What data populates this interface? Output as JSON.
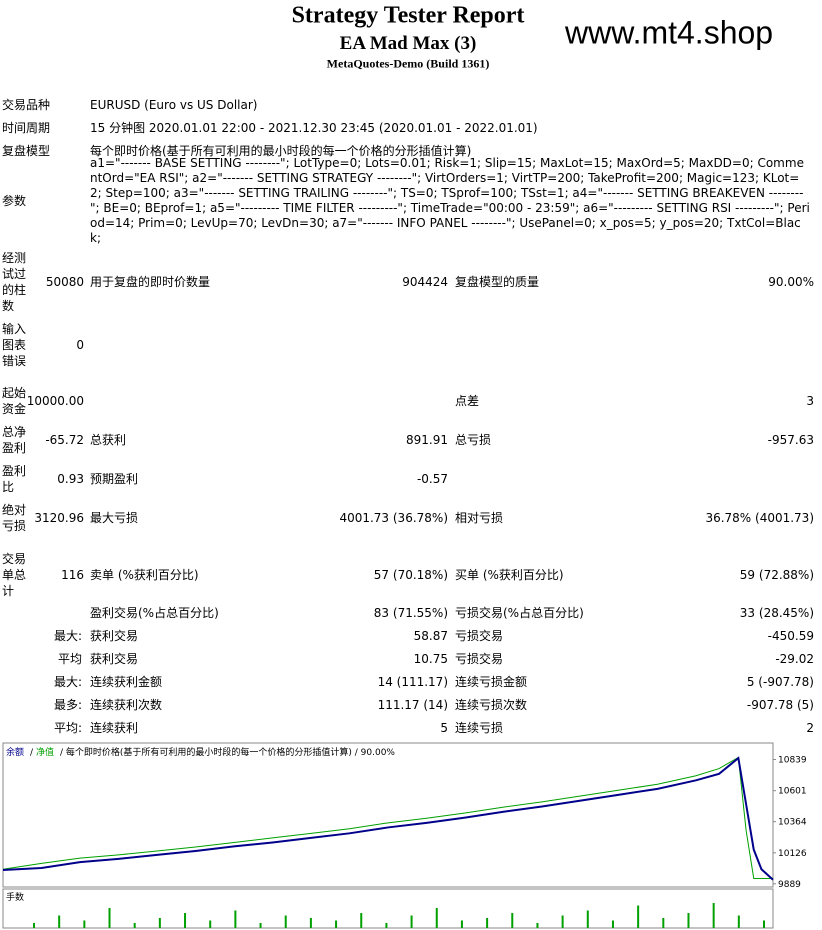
{
  "header": {
    "title": "Strategy Tester Report",
    "subtitle": "EA Mad Max (3)",
    "server": "MetaQuotes-Demo (Build 1361)",
    "watermark": "www.mt4.shop"
  },
  "table": {
    "rows": [
      {
        "label": "交易品种",
        "value": "EURUSD (Euro vs US Dollar)"
      },
      {
        "label": "时间周期",
        "value": "15 分钟图 2020.01.01 22:00 - 2021.12.30 23:45 (2020.01.01 - 2022.01.01)"
      },
      {
        "label": "复盘模型",
        "value": "每个即时价格(基于所有可利用的最小时段的每一个价格的分形插值计算)"
      },
      {
        "label": "参数",
        "value": "a1=\"------- BASE SETTING --------\"; LotType=0; Lots=0.01; Risk=1; Slip=15; MaxLot=15; MaxOrd=5; MaxDD=0; CommentOrd=\"EA RSI\"; a2=\"------- SETTING STRATEGY --------\"; VirtOrders=1; VirtTP=200; TakeProfit=200; Magic=123; KLot=2; Step=100; a3=\"------- SETTING TRAILING --------\"; TS=0; TSprof=100; TSst=1; a4=\"------- SETTING BREAKEVEN --------\"; BE=0; BEprof=1; a5=\"--------- TIME FILTER ---------\"; TimeTrade=\"00:00 - 23:59\"; a6=\"--------- SETTING RSI ---------\"; Period=14; Prim=0; LevUp=70; LevDn=30; a7=\"------- INFO PANEL --------\"; UsePanel=0; x_pos=5; y_pos=20; TxtCol=Black;"
      },
      {
        "label": "经测试过的柱数",
        "value": "50080",
        "cells": [
          {
            "label": "用于复盘的即时价数量",
            "value": "904424"
          },
          {
            "label": "复盘模型的质量",
            "value": "90.00%"
          }
        ]
      },
      {
        "label": "输入图表错误",
        "value": "0"
      },
      {
        "label": "起始资金",
        "value": "10000.00",
        "cells": [
          {
            "label": "点差",
            "value": "3"
          }
        ],
        "skip_first": true
      },
      {
        "label": "总净盈利",
        "value": "-65.72",
        "cells": [
          {
            "label": "总获利",
            "value": "891.91"
          },
          {
            "label": "总亏损",
            "value": "-957.63"
          }
        ]
      },
      {
        "label": "盈利比",
        "value": "0.93",
        "cells": [
          {
            "label": "预期盈利",
            "value": "-0.57"
          }
        ]
      },
      {
        "label": "绝对亏损",
        "value": "3120.96",
        "cells": [
          {
            "label": "最大亏损",
            "value": "4001.73 (36.78%)"
          },
          {
            "label": "相对亏损",
            "value": "36.78% (4001.73)"
          }
        ]
      },
      {
        "label": "交易单总计",
        "value": "116",
        "cells": [
          {
            "label": "卖单 (%获利百分比)",
            "value": "57 (70.18%)"
          },
          {
            "label": "买单 (%获利百分比)",
            "value": "59 (72.88%)"
          }
        ]
      },
      {
        "cells": [
          {
            "label": "盈利交易(%占总百分比)",
            "value": "83 (71.55%)"
          },
          {
            "label": "亏损交易(%占总百分比)",
            "value": "33 (28.45%)"
          }
        ]
      },
      {
        "prefix": "最大:",
        "cells": [
          {
            "label": "获利交易",
            "value": "58.87"
          },
          {
            "label": "亏损交易",
            "value": "-450.59"
          }
        ]
      },
      {
        "prefix": "平均",
        "cells": [
          {
            "label": "获利交易",
            "value": "10.75"
          },
          {
            "label": "亏损交易",
            "value": "-29.02"
          }
        ]
      },
      {
        "prefix": "最大:",
        "cells": [
          {
            "label": "连续获利金额",
            "value": "14 (111.17)"
          },
          {
            "label": "连续亏损金额",
            "value": "5 (-907.78)"
          }
        ]
      },
      {
        "prefix": "最多:",
        "cells": [
          {
            "label": "连续获利次数",
            "value": "111.17 (14)"
          },
          {
            "label": "连续亏损次数",
            "value": "-907.78 (5)"
          }
        ]
      },
      {
        "prefix": "平均:",
        "cells": [
          {
            "label": "连续获利",
            "value": "5"
          },
          {
            "label": "连续亏损",
            "value": "2"
          }
        ]
      }
    ]
  },
  "chart_data": {
    "type": "line",
    "legend_rest": "/ 每个即时价格(基于所有可利用的最小时段的每一个价格的分形插值计算) / 90.00%",
    "separator": "/",
    "x": [
      0,
      5,
      10,
      15,
      20,
      25,
      30,
      35,
      40,
      45,
      50,
      55,
      60,
      65,
      70,
      75,
      80,
      85,
      90,
      93,
      95.5,
      96.5,
      97.5,
      98.5,
      100
    ],
    "series": [
      {
        "name": "余额",
        "color": "#00008b",
        "values": [
          9995,
          10010,
          10055,
          10080,
          10110,
          10140,
          10175,
          10205,
          10240,
          10275,
          10320,
          10355,
          10395,
          10440,
          10480,
          10525,
          10570,
          10615,
          10680,
          10730,
          10850,
          10500,
          10150,
          10000,
          9920
        ]
      },
      {
        "name": "净值",
        "color": "#00a000",
        "values": [
          10000,
          10045,
          10085,
          10110,
          10140,
          10170,
          10205,
          10240,
          10275,
          10310,
          10355,
          10390,
          10430,
          10475,
          10515,
          10560,
          10605,
          10650,
          10715,
          10770,
          10855,
          10300,
          9930,
          9930,
          9930
        ]
      }
    ],
    "xlim": [
      0,
      100
    ],
    "ylim": [
      9880,
      10950
    ],
    "yticks": [
      9889,
      10126,
      10364,
      10601,
      10839
    ],
    "lots_label": "手数",
    "lots_color": "#00a000",
    "lots_ylim": [
      0,
      1
    ],
    "lots": [
      0.2,
      0.5,
      0.3,
      0.8,
      0.2,
      0.4,
      0.6,
      0.3,
      0.7,
      0.2,
      0.5,
      0.4,
      0.3,
      0.6,
      0.2,
      0.5,
      0.8,
      0.3,
      0.4,
      0.6,
      0.2,
      0.5,
      0.7,
      0.3,
      0.9,
      0.4,
      0.6,
      1.0,
      0.5,
      0.3
    ]
  }
}
